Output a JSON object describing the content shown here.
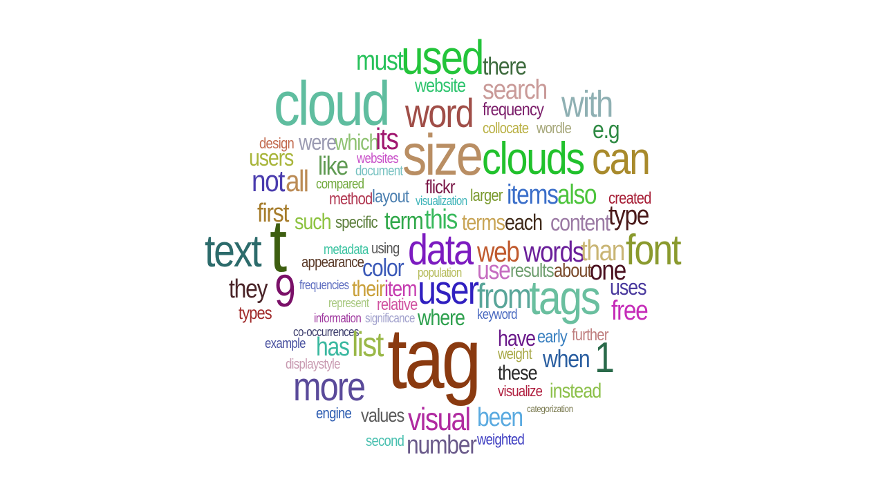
{
  "words": [
    {
      "text": "must",
      "color": "#27c15a"
    },
    {
      "text": "used",
      "color": "#23c43a"
    },
    {
      "text": "there",
      "color": "#3e6b3e"
    },
    {
      "text": "cloud",
      "color": "#5fbd9f"
    },
    {
      "text": "website",
      "color": "#2ec46e"
    },
    {
      "text": "search",
      "color": "#c99a98"
    },
    {
      "text": "word",
      "color": "#a04e48"
    },
    {
      "text": "frequency",
      "color": "#7b1e6a"
    },
    {
      "text": "with",
      "color": "#8fb0b3"
    },
    {
      "text": "collocate",
      "color": "#b9b043"
    },
    {
      "text": "wordle",
      "color": "#a6a77a"
    },
    {
      "text": "e.g",
      "color": "#2f8a44"
    },
    {
      "text": "design",
      "color": "#c26a4e"
    },
    {
      "text": "were",
      "color": "#9b9bb2"
    },
    {
      "text": "which",
      "color": "#8fc272"
    },
    {
      "text": "its",
      "color": "#a0176f"
    },
    {
      "text": "size",
      "color": "#b98e63"
    },
    {
      "text": "clouds",
      "color": "#21c12c"
    },
    {
      "text": "can",
      "color": "#a88a2c"
    },
    {
      "text": "users",
      "color": "#a8b53a"
    },
    {
      "text": "like",
      "color": "#5f9a52"
    },
    {
      "text": "websites",
      "color": "#c84fc8"
    },
    {
      "text": "document",
      "color": "#75c1c0"
    },
    {
      "text": "not",
      "color": "#4a3cae"
    },
    {
      "text": "all",
      "color": "#bb8b55"
    },
    {
      "text": "compared",
      "color": "#6fa83a"
    },
    {
      "text": "flickr",
      "color": "#7a1747"
    },
    {
      "text": "items",
      "color": "#3a6ec9"
    },
    {
      "text": "also",
      "color": "#4cc43c"
    },
    {
      "text": "created",
      "color": "#a61c34"
    },
    {
      "text": "method",
      "color": "#b0354f"
    },
    {
      "text": "layout",
      "color": "#4b7fb0"
    },
    {
      "text": "visualization",
      "color": "#3fb4b9"
    },
    {
      "text": "larger",
      "color": "#7a9a2e"
    },
    {
      "text": "first",
      "color": "#a67c2b"
    },
    {
      "text": "type",
      "color": "#4a1a1a"
    },
    {
      "text": "such",
      "color": "#8cc23f"
    },
    {
      "text": "specific",
      "color": "#5a7d3a"
    },
    {
      "text": "term",
      "color": "#30a84a"
    },
    {
      "text": "this",
      "color": "#38b95c"
    },
    {
      "text": "terms",
      "color": "#c8a455"
    },
    {
      "text": "each",
      "color": "#3f2a1a"
    },
    {
      "text": "content",
      "color": "#9b7aa4"
    },
    {
      "text": "text",
      "color": "#2c6b6b"
    },
    {
      "text": "t",
      "color": "#3d5e10"
    },
    {
      "text": "metadata",
      "color": "#39c3a0"
    },
    {
      "text": "using",
      "color": "#555555"
    },
    {
      "text": "data",
      "color": "#7c1bc0"
    },
    {
      "text": "web",
      "color": "#c05a2e"
    },
    {
      "text": "words",
      "color": "#6a1f9a"
    },
    {
      "text": "than",
      "color": "#c9b574"
    },
    {
      "text": "font",
      "color": "#8a9a2e"
    },
    {
      "text": "appearance",
      "color": "#5a3a28"
    },
    {
      "text": "color",
      "color": "#3c5ab8"
    },
    {
      "text": "use",
      "color": "#c56cc0"
    },
    {
      "text": "results",
      "color": "#6e9e6e"
    },
    {
      "text": "about",
      "color": "#7a4a2a"
    },
    {
      "text": "one",
      "color": "#4a1020"
    },
    {
      "text": "population",
      "color": "#b5bb5a"
    },
    {
      "text": "they",
      "color": "#4a2428"
    },
    {
      "text": "9",
      "color": "#7a1068"
    },
    {
      "text": "frequencies",
      "color": "#5e6ec0"
    },
    {
      "text": "their",
      "color": "#c9a03a"
    },
    {
      "text": "item",
      "color": "#c53cb0"
    },
    {
      "text": "user",
      "color": "#3020c0"
    },
    {
      "text": "from",
      "color": "#5aa69a"
    },
    {
      "text": "tags",
      "color": "#6abf9f"
    },
    {
      "text": "uses",
      "color": "#4a3a9e"
    },
    {
      "text": "represent",
      "color": "#a8c880"
    },
    {
      "text": "relative",
      "color": "#d052a0"
    },
    {
      "text": "types",
      "color": "#a02a2a"
    },
    {
      "text": "free",
      "color": "#c52cb8"
    },
    {
      "text": "information",
      "color": "#a03aa0"
    },
    {
      "text": "significance",
      "color": "#a0a0cc"
    },
    {
      "text": "where",
      "color": "#2ea04e"
    },
    {
      "text": "keyword",
      "color": "#4a6ac0"
    },
    {
      "text": "co-occurrences",
      "color": "#3a3a6a"
    },
    {
      "text": "tag",
      "color": "#8a3a10"
    },
    {
      "text": "have",
      "color": "#6a1a8a"
    },
    {
      "text": "early",
      "color": "#3a80c0"
    },
    {
      "text": "further",
      "color": "#c08080"
    },
    {
      "text": "example",
      "color": "#4a52a0"
    },
    {
      "text": "has",
      "color": "#3ab8a0"
    },
    {
      "text": "list",
      "color": "#9ab848"
    },
    {
      "text": "weight",
      "color": "#a8a848"
    },
    {
      "text": "when",
      "color": "#2a5ea0"
    },
    {
      "text": "1",
      "color": "#2a6a4a"
    },
    {
      "text": "displaystyle",
      "color": "#c89ab0"
    },
    {
      "text": "these",
      "color": "#2a2a2a"
    },
    {
      "text": "more",
      "color": "#5a4a9a"
    },
    {
      "text": "visualize",
      "color": "#b02040"
    },
    {
      "text": "instead",
      "color": "#8cc04a"
    },
    {
      "text": "categorization",
      "color": "#7a7a50"
    },
    {
      "text": "engine",
      "color": "#2a5ab0"
    },
    {
      "text": "values",
      "color": "#5a5a5a"
    },
    {
      "text": "visual",
      "color": "#b02aa0"
    },
    {
      "text": "been",
      "color": "#5aaae0"
    },
    {
      "text": "second",
      "color": "#4ac0b0"
    },
    {
      "text": "number",
      "color": "#6a5a8a"
    },
    {
      "text": "weighted",
      "color": "#3a3ac0"
    }
  ]
}
